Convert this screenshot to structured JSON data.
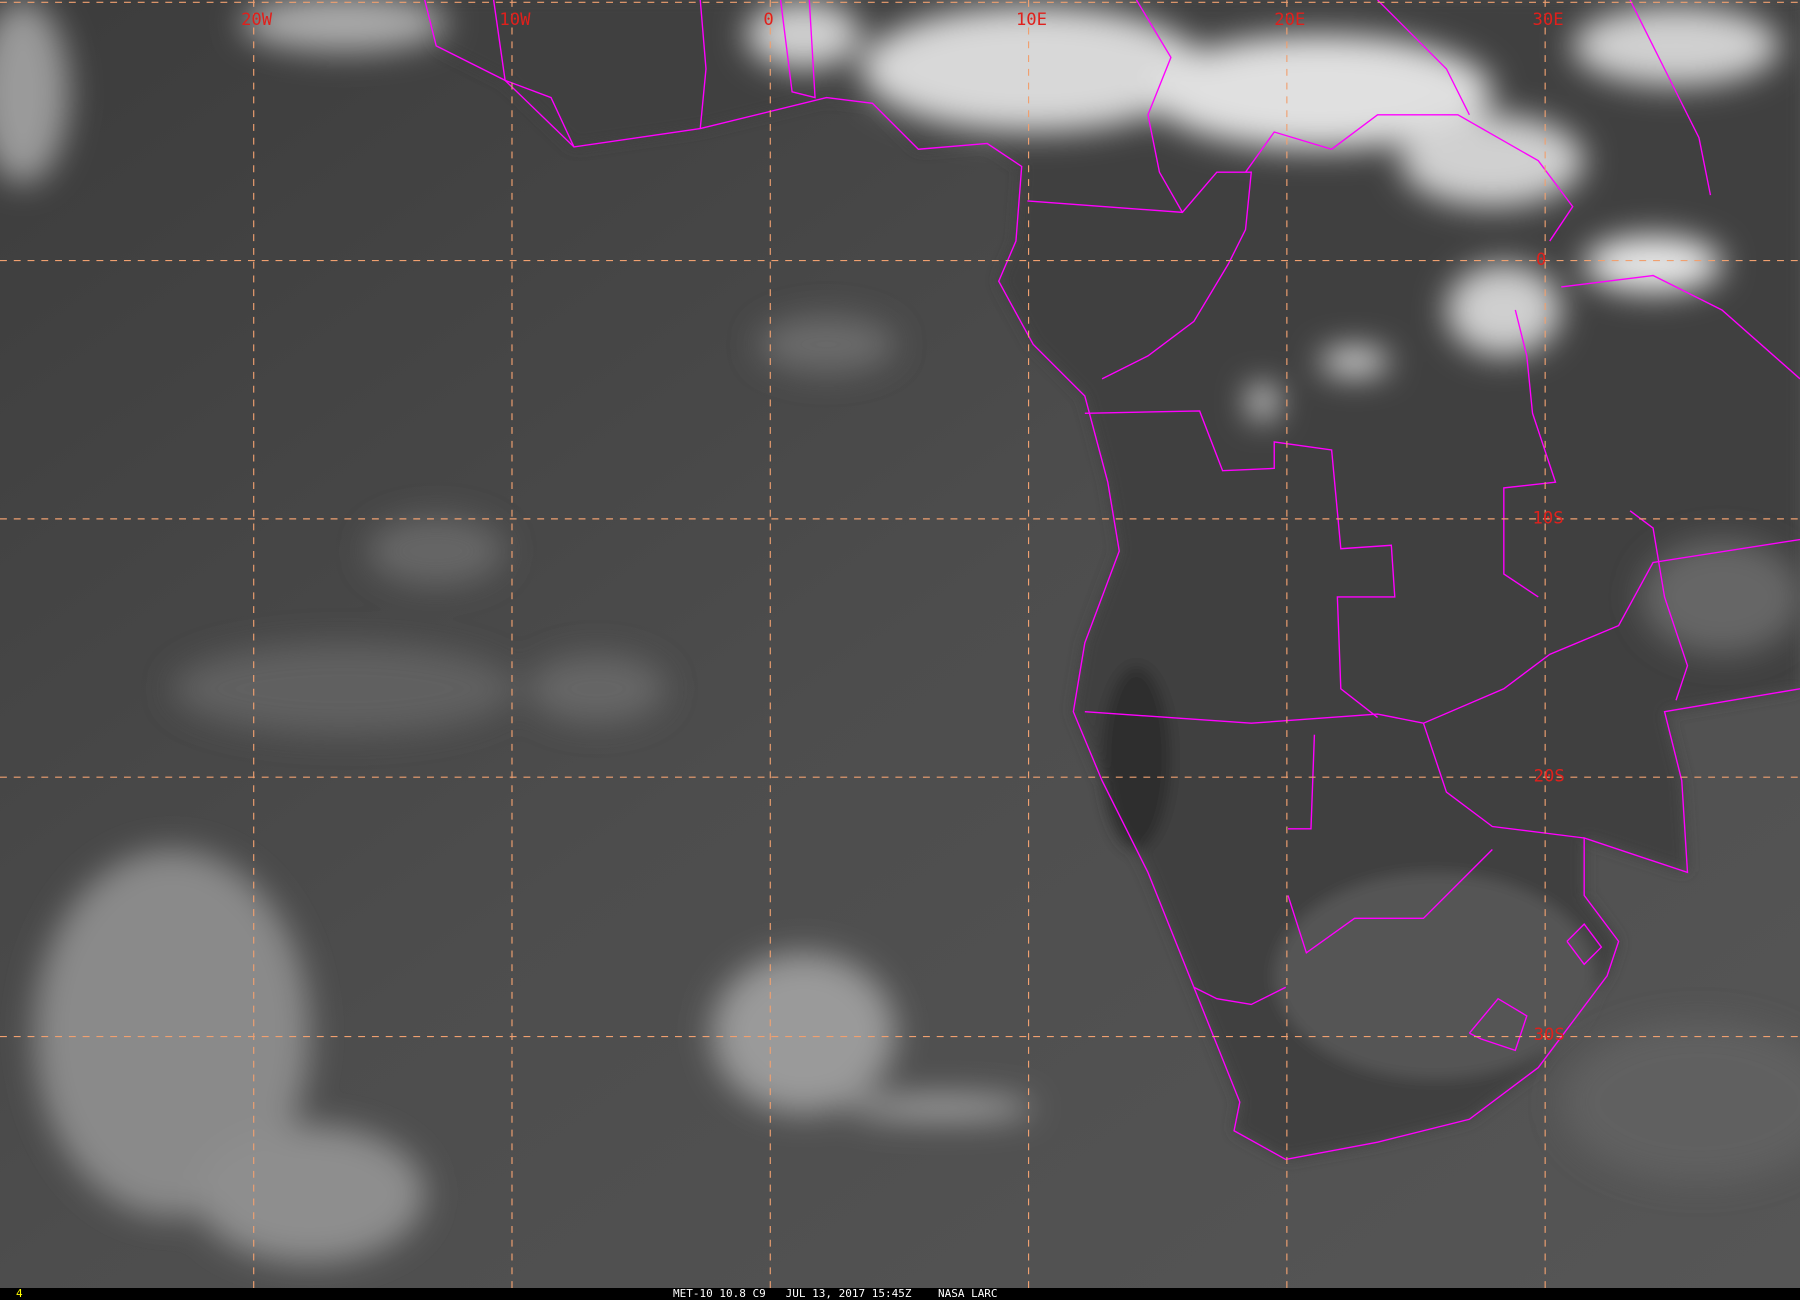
{
  "image": {
    "sensor": "MET-10 10.8 C9",
    "date": "JUL 13, 2017",
    "time": "15:45Z",
    "source": "NASA LARC",
    "frame_number": "4"
  },
  "grid": {
    "longitude_labels": [
      "20W",
      "10W",
      "0",
      "10E",
      "20E",
      "30E"
    ],
    "latitude_labels": [
      "0",
      "10S",
      "20S",
      "30S"
    ]
  },
  "colors": {
    "background": "#4a4a4a",
    "borders": "#ff00ff",
    "grid": "#f0a070",
    "labels": "#e0201c",
    "frame_number": "#ffff00"
  }
}
